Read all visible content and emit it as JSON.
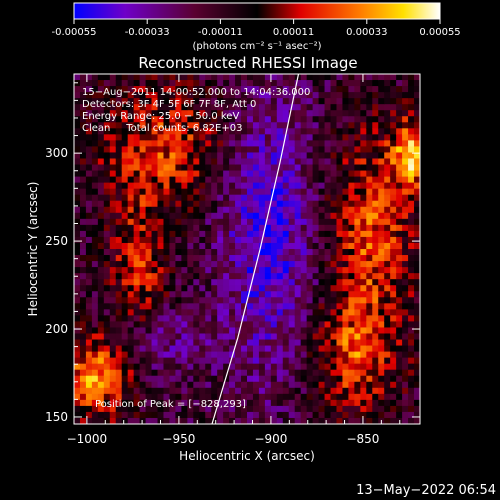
{
  "colorbar": {
    "ticks": [
      "-0.00055",
      "-0.00033",
      "-0.00011",
      "0.00011",
      "0.00033",
      "0.00055"
    ],
    "tick_values": [
      -0.00055,
      -0.00033,
      -0.00011,
      0.00011,
      0.00033,
      0.00055
    ],
    "range": [
      -0.00055,
      0.00055
    ],
    "unit_label": "(photons cm⁻² s⁻¹ asec⁻²)",
    "colors": [
      "#0000ff",
      "#6f00c8",
      "#5a0030",
      "#000000",
      "#e00000",
      "#ff7a00",
      "#ffe000",
      "#ffffff"
    ]
  },
  "chart_data": {
    "type": "heatmap",
    "title": "Reconstructed RHESSI Image",
    "xlabel": "Heliocentric X (arcsec)",
    "ylabel": "Heliocentric Y (arcsec)",
    "xlim": [
      -1007,
      -819
    ],
    "ylim": [
      146,
      345
    ],
    "xticks": [
      -1000,
      -950,
      -900,
      -850
    ],
    "yticks": [
      150,
      200,
      250,
      300
    ],
    "xtick_labels": [
      "−1000",
      "−950",
      "−900",
      "−850"
    ],
    "ytick_labels": [
      "150",
      "200",
      "250",
      "300"
    ],
    "limb_points": [
      [
        -932,
        146
      ],
      [
        -918,
        195
      ],
      [
        -906,
        245
      ],
      [
        -895,
        295
      ],
      [
        -885,
        345
      ]
    ],
    "info_lines": [
      "15−Aug−2011 14:00:52.000 to 14:04:36.000",
      "Detectors: 3F 4F 5F 6F 7F 8F, Att 0",
      "Energy Range: 25.0 − 50.0 keV",
      "Clean     Total counts: 6.82E+03"
    ],
    "peak_label": "Position of Peak = [−828,293]",
    "peak": [
      -828,
      293
    ],
    "grid": false,
    "colorbar_range": [
      -0.00055,
      0.00055
    ]
  },
  "footer": {
    "timestamp": "13−May−2022 06:54"
  }
}
